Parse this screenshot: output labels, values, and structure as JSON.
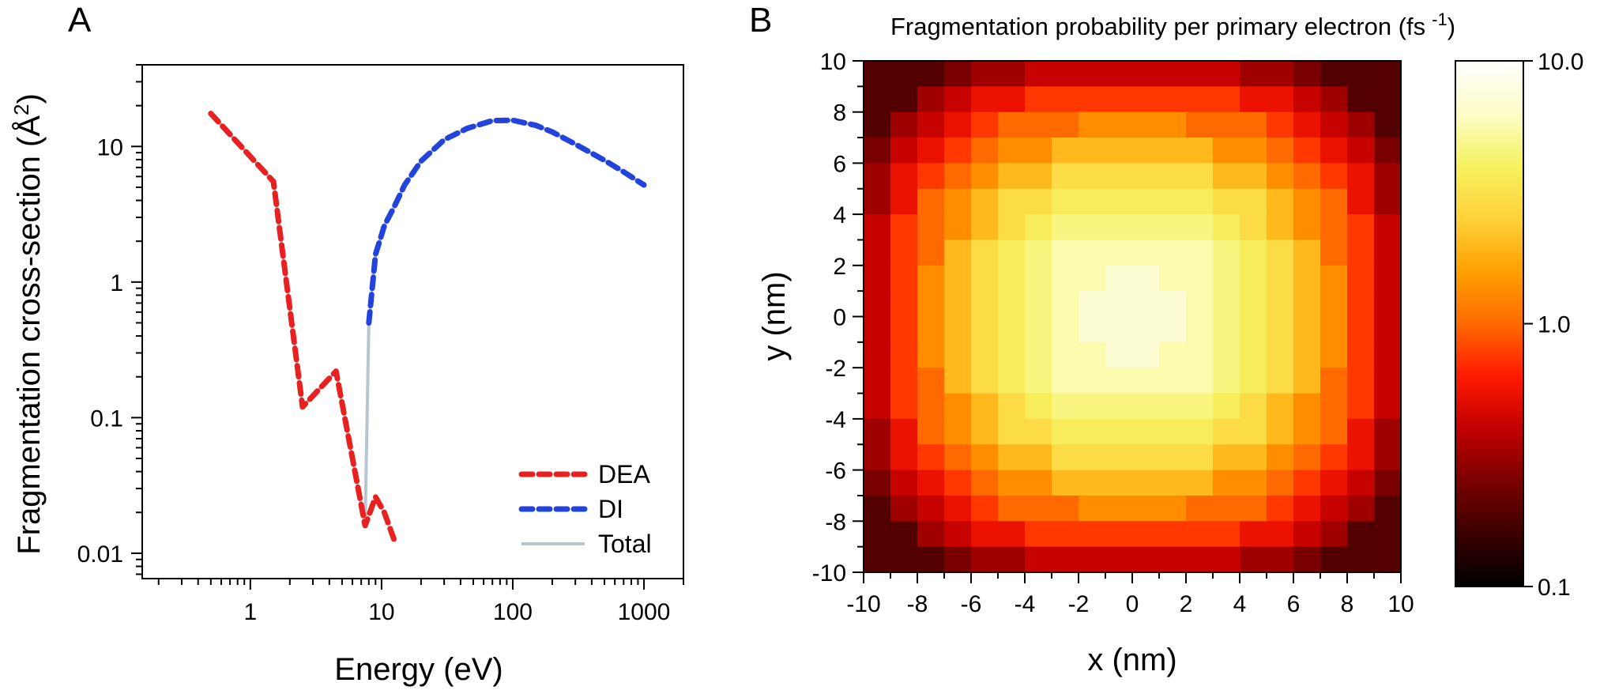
{
  "panel_a": {
    "letter": "A",
    "chart_data": {
      "type": "line",
      "xlabel": "Energy (eV)",
      "ylabel_main": "Fragmentation cross-section (Å",
      "ylabel_sup": "2",
      "ylabel_close": ")",
      "x_scale": "log",
      "y_scale": "log",
      "xlim": [
        0.15,
        2000
      ],
      "ylim": [
        0.0065,
        40
      ],
      "x_ticks": [
        1,
        10,
        100,
        1000
      ],
      "x_tick_labels": [
        "1",
        "10",
        "100",
        "1000"
      ],
      "y_ticks": [
        0.01,
        0.1,
        1,
        10
      ],
      "y_tick_labels": [
        "0.01",
        "0.1",
        "1",
        "10"
      ],
      "legend_position": "bottom-right",
      "series": [
        {
          "name": "DEA",
          "style": "dashed",
          "color": "#e82020",
          "x": [
            0.5,
            1.5,
            2.5,
            4.5,
            7.5,
            9.0,
            10.5,
            12.5
          ],
          "y": [
            17.5,
            5.5,
            0.12,
            0.22,
            0.016,
            0.026,
            0.02,
            0.0125
          ]
        },
        {
          "name": "DI",
          "style": "dashed",
          "color": "#2244dd",
          "x": [
            8.0,
            9.0,
            10.5,
            12.5,
            15,
            20,
            30,
            45,
            70,
            100,
            150,
            200,
            300,
            500,
            700,
            1000
          ],
          "y": [
            0.5,
            1.6,
            2.6,
            3.6,
            5.2,
            7.8,
            11.2,
            13.6,
            15.5,
            15.6,
            14.3,
            12.8,
            10.4,
            7.9,
            6.5,
            5.2
          ]
        },
        {
          "name": "Total",
          "style": "solid",
          "color": "#b8c4d0",
          "x": [
            0.5,
            1.5,
            2.5,
            4.5,
            7.5,
            8.0,
            9.0,
            10.5,
            12.5,
            15,
            20,
            30,
            45,
            70,
            100,
            150,
            200,
            300,
            500,
            700,
            1000
          ],
          "y": [
            17.5,
            5.5,
            0.12,
            0.22,
            0.016,
            0.5,
            1.6,
            2.6,
            3.6,
            5.2,
            7.8,
            11.2,
            13.6,
            15.5,
            15.6,
            14.3,
            12.8,
            10.4,
            7.9,
            6.5,
            5.2
          ]
        }
      ]
    }
  },
  "panel_b": {
    "letter": "B",
    "chart_data": {
      "type": "heatmap",
      "title_main": "Fragmentation probability per primary electron (fs",
      "title_sup": "-1",
      "title_close": ")",
      "xlabel": "x (nm)",
      "ylabel": "y (nm)",
      "xlim": [
        -10,
        10
      ],
      "ylim": [
        -10,
        10
      ],
      "x_ticks": [
        -10,
        -8,
        -6,
        -4,
        -2,
        0,
        2,
        4,
        6,
        8,
        10
      ],
      "y_ticks": [
        -10,
        -8,
        -6,
        -4,
        -2,
        0,
        2,
        4,
        6,
        8,
        10
      ],
      "grid_size": 20,
      "color_scale": "log",
      "color_range": [
        0.1,
        10
      ],
      "colorbar_ticks": [
        10,
        1,
        0.1
      ],
      "colorbar_tick_labels": [
        "10.0",
        "1.0",
        "0.1"
      ],
      "colormap": [
        "#000000",
        "#3a0000",
        "#7a0000",
        "#c00000",
        "#ff1a00",
        "#ff6a00",
        "#ffa000",
        "#ffd23a",
        "#f6f260",
        "#fdfdc8",
        "#ffffff"
      ],
      "peak_value": 7.0,
      "sigma_nm": 4.0,
      "levels": [
        0.19,
        0.25,
        0.32,
        0.42,
        0.55,
        0.75,
        1.0,
        1.35,
        2.0,
        2.9,
        3.7,
        4.6,
        5.6,
        7.0
      ]
    }
  }
}
